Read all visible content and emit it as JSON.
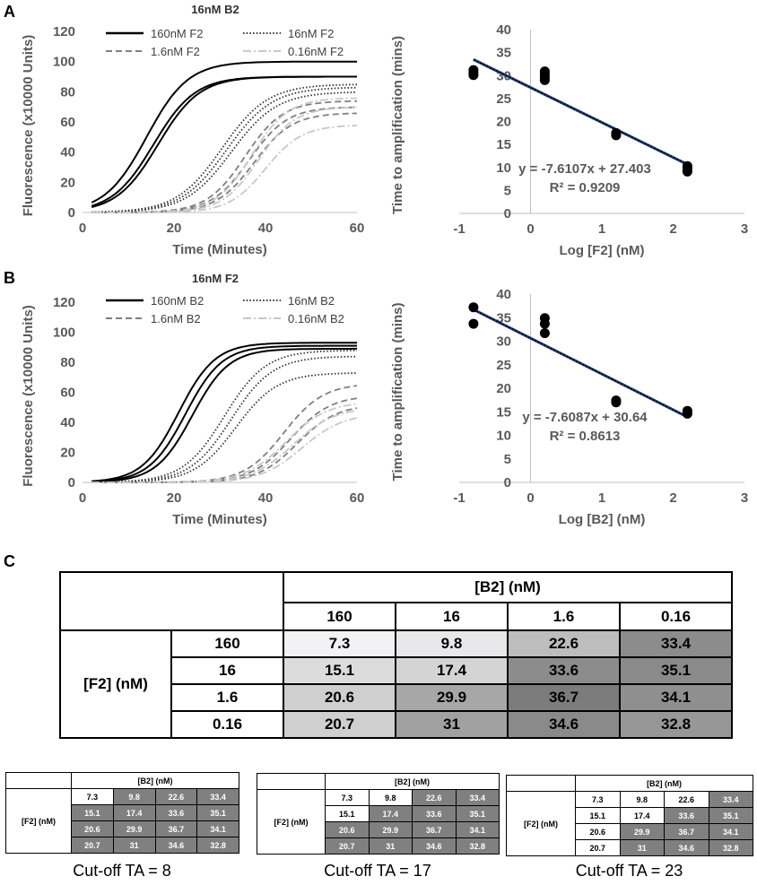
{
  "panels": {
    "a": "A",
    "b": "B",
    "c": "C"
  },
  "chart_data": [
    {
      "type": "line",
      "id": "A-left",
      "title": "16nM B2",
      "xlabel": "Time (Minutes)",
      "ylabel": "Fluorescence (x10000 Units)",
      "xlim": [
        0,
        60
      ],
      "ylim": [
        0,
        120
      ],
      "xticks": [
        0,
        20,
        40,
        60
      ],
      "yticks": [
        0,
        20,
        40,
        60,
        80,
        100,
        120
      ],
      "legend": [
        "160nM F2",
        "16nM F2",
        "1.6nM F2",
        "0.16nM F2"
      ],
      "series": [
        {
          "name": "160nM F2",
          "style": "solid",
          "color": "#000000",
          "replicates": [
            {
              "top": 100,
              "mid": 14,
              "k": 0.22
            },
            {
              "top": 90,
              "mid": 15.5,
              "k": 0.22
            },
            {
              "top": 90,
              "mid": 16.5,
              "k": 0.22
            }
          ]
        },
        {
          "name": "16nM F2",
          "style": "dotted",
          "color": "#333333",
          "replicates": [
            {
              "top": 85,
              "mid": 30.5,
              "k": 0.2
            },
            {
              "top": 83,
              "mid": 31.5,
              "k": 0.2
            },
            {
              "top": 80,
              "mid": 32.5,
              "k": 0.2
            }
          ]
        },
        {
          "name": "1.6nM F2",
          "style": "dashed",
          "color": "#808080",
          "replicates": [
            {
              "top": 74,
              "mid": 35.5,
              "k": 0.24
            },
            {
              "top": 70,
              "mid": 36.5,
              "k": 0.24
            },
            {
              "top": 66,
              "mid": 37.5,
              "k": 0.24
            }
          ]
        },
        {
          "name": "0.16nM F2",
          "style": "dashdot",
          "color": "#c8c8c8",
          "replicates": [
            {
              "top": 76,
              "mid": 37,
              "k": 0.25
            },
            {
              "top": 70,
              "mid": 38.5,
              "k": 0.25
            },
            {
              "top": 58,
              "mid": 40,
              "k": 0.25
            }
          ]
        }
      ]
    },
    {
      "type": "scatter",
      "id": "A-right",
      "xlabel": "Log [F2] (nM)",
      "ylabel": "Time to amplification (mins)",
      "xlim": [
        -1,
        3
      ],
      "ylim": [
        0,
        40
      ],
      "xticks": [
        -1,
        0,
        1,
        2,
        3
      ],
      "yticks": [
        0,
        5,
        10,
        15,
        20,
        25,
        30,
        35,
        40
      ],
      "points": [
        [
          -0.8,
          30.1
        ],
        [
          -0.8,
          30.6
        ],
        [
          -0.8,
          31.2
        ],
        [
          0.2,
          29.0
        ],
        [
          0.2,
          29.7
        ],
        [
          0.2,
          30.3
        ],
        [
          0.2,
          30.9
        ],
        [
          1.2,
          17.0
        ],
        [
          1.2,
          17.5
        ],
        [
          2.2,
          9.1
        ],
        [
          2.2,
          9.7
        ],
        [
          2.2,
          10.3
        ]
      ],
      "fit": {
        "slope": -7.6107,
        "intercept": 27.403,
        "equation": "y = -7.6107x + 27.403",
        "r2": "R² = 0.9209"
      }
    },
    {
      "type": "line",
      "id": "B-left",
      "title": "16nM F2",
      "xlabel": "Time (Minutes)",
      "ylabel": "Fluorescence (x10000 Units)",
      "xlim": [
        0,
        60
      ],
      "ylim": [
        0,
        120
      ],
      "xticks": [
        0,
        20,
        40,
        60
      ],
      "yticks": [
        0,
        20,
        40,
        60,
        80,
        100,
        120
      ],
      "legend": [
        "160nM B2",
        "16nM B2",
        "1.6nM B2",
        "0.16nM B2"
      ],
      "series": [
        {
          "name": "160nM B2",
          "style": "solid",
          "color": "#000000",
          "replicates": [
            {
              "top": 93,
              "mid": 21,
              "k": 0.25
            },
            {
              "top": 91,
              "mid": 22.5,
              "k": 0.25
            },
            {
              "top": 89,
              "mid": 24,
              "k": 0.25
            }
          ]
        },
        {
          "name": "16nM B2",
          "style": "dotted",
          "color": "#333333",
          "replicates": [
            {
              "top": 88,
              "mid": 31,
              "k": 0.22
            },
            {
              "top": 84,
              "mid": 32.5,
              "k": 0.22
            },
            {
              "top": 73,
              "mid": 33.5,
              "k": 0.22
            }
          ]
        },
        {
          "name": "1.6nM B2",
          "style": "dashed",
          "color": "#808080",
          "replicates": [
            {
              "top": 66,
              "mid": 44,
              "k": 0.23
            },
            {
              "top": 58,
              "mid": 45.5,
              "k": 0.23
            },
            {
              "top": 52,
              "mid": 47,
              "k": 0.23
            }
          ]
        },
        {
          "name": "0.16nM B2",
          "style": "dashdot",
          "color": "#c8c8c8",
          "replicates": [
            {
              "top": 54,
              "mid": 44.5,
              "k": 0.22
            },
            {
              "top": 50,
              "mid": 46,
              "k": 0.22
            },
            {
              "top": 46,
              "mid": 48,
              "k": 0.22
            }
          ]
        }
      ]
    },
    {
      "type": "scatter",
      "id": "B-right",
      "xlabel": "Log [B2] (nM)",
      "ylabel": "Time to amplification (mins)",
      "xlim": [
        -1,
        3
      ],
      "ylim": [
        0,
        40
      ],
      "xticks": [
        -1,
        0,
        1,
        2,
        3
      ],
      "yticks": [
        0,
        5,
        10,
        15,
        20,
        25,
        30,
        35,
        40
      ],
      "points": [
        [
          -0.8,
          33.7
        ],
        [
          -0.8,
          37.2
        ],
        [
          0.2,
          31.7
        ],
        [
          0.2,
          33.7
        ],
        [
          0.2,
          34.9
        ],
        [
          1.2,
          17.0
        ],
        [
          1.2,
          17.4
        ],
        [
          2.2,
          14.6
        ],
        [
          2.2,
          15.2
        ]
      ],
      "fit": {
        "slope": -7.6087,
        "intercept": 30.64,
        "equation": "y = -7.6087x + 30.64",
        "r2": "R² = 0.8613"
      }
    },
    {
      "type": "table",
      "id": "C-main",
      "col_header": "[B2] (nM)",
      "row_header": "[F2] (nM)",
      "cols": [
        "160",
        "16",
        "1.6",
        "0.16"
      ],
      "rows": [
        "160",
        "16",
        "1.6",
        "0.16"
      ],
      "values": [
        [
          "7.3",
          "9.8",
          "22.6",
          "33.4"
        ],
        [
          "15.1",
          "17.4",
          "33.6",
          "35.1"
        ],
        [
          "20.6",
          "29.9",
          "36.7",
          "34.1"
        ],
        [
          "20.7",
          "31",
          "34.6",
          "32.8"
        ]
      ],
      "shades": [
        [
          "#f2f2f4",
          "#e8e8ea",
          "#bdbdbd",
          "#8c8c8c"
        ],
        [
          "#dcdcdc",
          "#d4d4d4",
          "#8c8c8c",
          "#8a8a8a"
        ],
        [
          "#cfcfcf",
          "#a7a7a7",
          "#7c7c7c",
          "#8f8f8f"
        ],
        [
          "#cfcfcf",
          "#a1a1a1",
          "#8a8a8a",
          "#979797"
        ]
      ]
    }
  ],
  "cutoff_tables": [
    {
      "caption": "Cut-off TA = 8",
      "cutoff": 8
    },
    {
      "caption": "Cut-off TA = 17",
      "cutoff": 17
    },
    {
      "caption": "Cut-off TA = 23",
      "cutoff": 23
    }
  ],
  "colors": {
    "below": "#ffffff",
    "above": "#808080",
    "fit_line": "#1f3a6e",
    "grid_axis": "#d9d9d9",
    "text_gray": "#595959"
  }
}
